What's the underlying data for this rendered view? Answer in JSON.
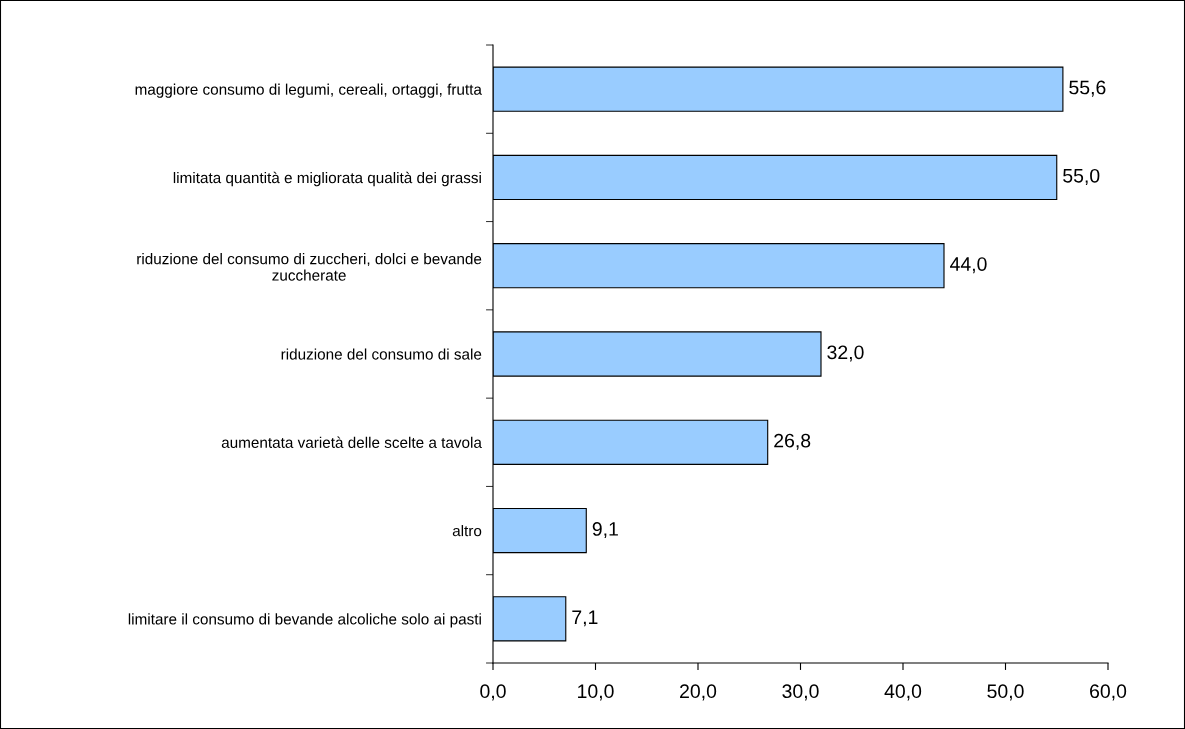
{
  "chart_data": {
    "type": "bar",
    "orientation": "horizontal",
    "categories": [
      "maggiore consumo di legumi, cereali, ortaggi, frutta",
      "limitata quantità e migliorata qualità dei grassi",
      "riduzione del consumo di zuccheri, dolci e bevande\nzuccherate",
      "riduzione del consumo di sale",
      "aumentata varietà delle scelte a tavola",
      "altro",
      "limitare il consumo di bevande alcoliche solo ai pasti"
    ],
    "values": [
      55.6,
      55.0,
      44.0,
      32.0,
      26.8,
      9.1,
      7.1
    ],
    "value_labels": [
      "55,6",
      "55,0",
      "44,0",
      "32,0",
      "26,8",
      "9,1",
      "7,1"
    ],
    "color": "#99ccff",
    "xlim": [
      0,
      60
    ],
    "xticks": [
      {
        "value": 0,
        "label": "0,0"
      },
      {
        "value": 10,
        "label": "10,0"
      },
      {
        "value": 20,
        "label": "20,0"
      },
      {
        "value": 30,
        "label": "30,0"
      },
      {
        "value": 40,
        "label": "40,0"
      },
      {
        "value": 50,
        "label": "50,0"
      },
      {
        "value": 60,
        "label": "60,0"
      }
    ],
    "grid": false,
    "legend": false
  }
}
